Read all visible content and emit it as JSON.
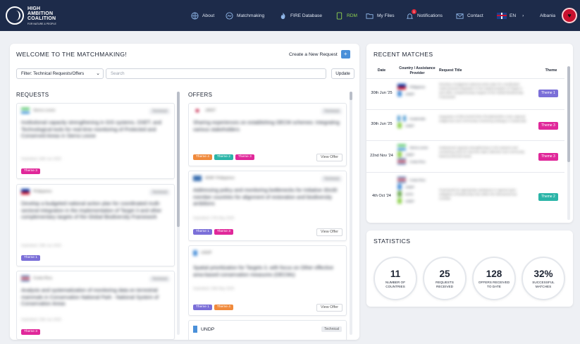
{
  "brand": {
    "line1": "HIGH",
    "line2": "AMBITION",
    "line3": "COALITION",
    "tagline": "FOR NATURE & PEOPLE"
  },
  "nav": {
    "about": "About",
    "matchmaking": "Matchmaking",
    "fire_db": "FIRE Database",
    "rdm": "RDM",
    "my_files": "My Files",
    "notifications": "Notifications",
    "notif_count": "1",
    "contact": "Contact",
    "lang": "EN",
    "country": "Albania"
  },
  "main": {
    "title": "WELCOME TO THE MATCHMAKING!",
    "create_label": "Create a New Request",
    "create_plus": "+",
    "filter_value": "Filter: Technical Requests/Offers",
    "search_placeholder": "Search",
    "update_label": "Update",
    "requests_heading": "REQUESTS",
    "offers_heading": "OFFERS",
    "view_offer": "View Offer"
  },
  "requests": [
    {
      "org": "Sierra Leone",
      "tag": "Technical",
      "text": "Institutional capacity strengthening in GIS systems, DSET, and Technological tools for real-time monitoring of Protected and Conserved Areas in Sierra Leone",
      "meta": "Submitted: 30th Jun 2025",
      "themes": [
        "Theme 3"
      ]
    },
    {
      "org": "Philippines",
      "tag": "Technical",
      "text": "Develop a budgeted national action plan for coordinated multi-sectoral integration in the implementation of Target 3 and other complementary targets of the Global Biodiversity Framework",
      "meta": "Submitted: 29th Jun 2025",
      "themes": [
        "Theme 1"
      ]
    },
    {
      "org": "Costa Rica",
      "tag": "Technical",
      "text": "Analysis and systematization of monitoring data on terrestrial mammals in Conservation National Park - National System of Conservation Areas",
      "meta": "Submitted: 25th Jun 2025",
      "themes": [
        "Theme 3"
      ]
    }
  ],
  "offers": [
    {
      "org": "JANIT",
      "tag": "Technical",
      "text": "Sharing experiences on establishing OECM schemes: Integrating various stakeholders",
      "themes": [
        "Theme 4",
        "Theme 2",
        "Theme 3"
      ]
    },
    {
      "org": "WWF Philippines",
      "tag": "Technical",
      "text": "Addressing policy and monitoring bottlenecks for Initiative 30x30 member countries for alignment of restoration and biodiversity ambitions",
      "meta": "Submitted: 27th May 2025",
      "themes": [
        "Theme 1",
        "Theme 3"
      ]
    },
    {
      "org": "UNDP",
      "tag": "Technical",
      "text": "Spatial prioritization for Targets 3, with focus on Other effective area-based conservation measures (OECMs)",
      "meta": "Submitted: 20th May 2025",
      "themes": [
        "Theme 1",
        "Theme 4"
      ]
    },
    {
      "org": "UNDP",
      "tag": "Technical",
      "text": "",
      "themes": []
    }
  ],
  "matches": {
    "title": "RECENT MATCHES",
    "headers": {
      "date": "Date",
      "provider": "Country / Assistance Provider",
      "title": "Request Title",
      "theme": "Theme"
    },
    "rows": [
      {
        "date": "30th Jun '25",
        "providers": [
          "Philippines",
          "UNDP"
        ],
        "title": "Develop a budgeted national action plan for coordinated multi-sectoral integration in the implementation of Target 3 and other complementary targets of the Global Biodiversity Framework",
        "theme": "Theme 1"
      },
      {
        "date": "30th Jun '25",
        "providers": [
          "Guatemala",
          "UNEP"
        ],
        "title": "Integration of RECOGNITION FRAMEWORK in the national indigenous and community monitoring strategy in Guatemala",
        "theme": "Theme 3"
      },
      {
        "date": "22nd Nov '24",
        "providers": [
          "Sierra Leone",
          "UNEP",
          "Costa Rica"
        ],
        "title": "Institutional capacity strengthening in GIS systems and monitoring tools for real-time data collection and community based protected areas",
        "theme": "Theme 3"
      },
      {
        "date": "4th Oct '24",
        "providers": [
          "Costa Rica",
          "UNDP",
          "IUCN",
          "UNEP"
        ],
        "title": "Framework for appropriate assistance in agreed-upon mitigation of biodiversity loss within the Mesoamerican Corridor",
        "theme": "Theme 2"
      }
    ]
  },
  "stats": {
    "title": "STATISTICS",
    "items": [
      {
        "value": "11",
        "label": "Number of Countries"
      },
      {
        "value": "25",
        "label": "Requests Received"
      },
      {
        "value": "128",
        "label": "Offers Received to Date"
      },
      {
        "value": "32%",
        "label": "Successful Matches"
      }
    ]
  },
  "colors": {
    "nav_bg": "#1d2b4a",
    "theme1": "#7b6fd8",
    "theme2": "#2bb5a8",
    "theme3": "#e0289a",
    "theme4": "#f08a3c"
  }
}
